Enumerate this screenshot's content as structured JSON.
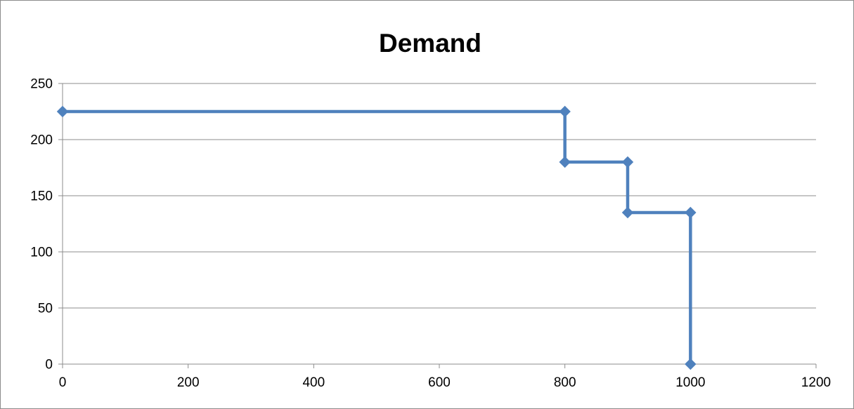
{
  "chart_data": {
    "type": "scatter",
    "title": "Demand",
    "xlabel": "",
    "ylabel": "",
    "xlim": [
      0,
      1200
    ],
    "ylim": [
      0,
      250
    ],
    "xticks": [
      0,
      200,
      400,
      600,
      800,
      1000,
      1200
    ],
    "yticks": [
      0,
      50,
      100,
      150,
      200,
      250
    ],
    "grid": "horizontal",
    "legend": "none",
    "series": [
      {
        "style": "straight lines with diamond markers",
        "color": "#4f81bd",
        "points": [
          {
            "x": 0,
            "y": 225
          },
          {
            "x": 800,
            "y": 225
          },
          {
            "x": 800,
            "y": 180
          },
          {
            "x": 900,
            "y": 180
          },
          {
            "x": 900,
            "y": 135
          },
          {
            "x": 1000,
            "y": 135
          },
          {
            "x": 1000,
            "y": 0
          }
        ]
      }
    ],
    "colors": {
      "gridline": "#8c8c8c",
      "axis": "#8c8c8c",
      "frame": "#8c8c8c"
    }
  }
}
